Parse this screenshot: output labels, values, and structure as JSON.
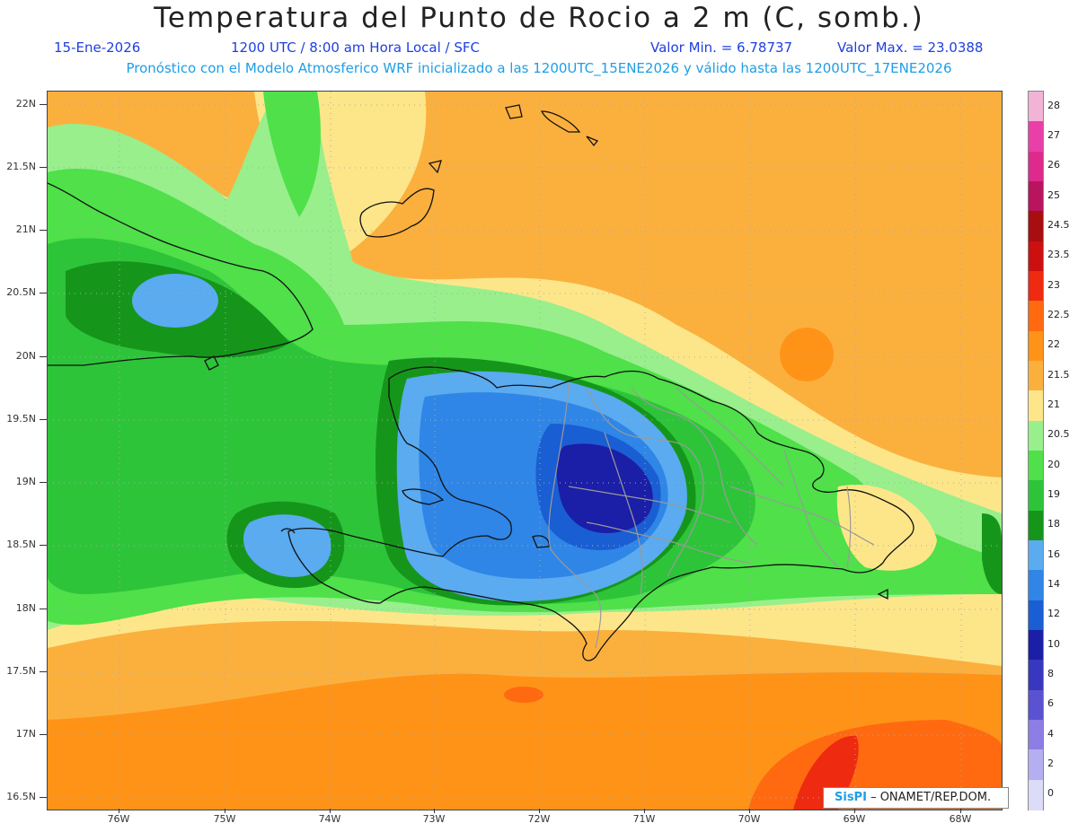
{
  "header": {
    "title": "Temperatura del Punto de Rocio a 2 m (C, somb.)",
    "date": "15-Ene-2026",
    "time": "1200 UTC / 8:00 am Hora Local / SFC",
    "vmin": "Valor Min. = 6.78737",
    "vmax": "Valor Max. = 23.0388",
    "subtitle": "Pronóstico con el Modelo Atmosferico WRF inicializado a las 1200UTC_15ENE2026 y válido hasta las  1200UTC_17ENE2026"
  },
  "axes": {
    "lat_labels": [
      "22N",
      "21.5N",
      "21N",
      "20.5N",
      "20N",
      "19.5N",
      "19N",
      "18.5N",
      "18N",
      "17.5N",
      "17N",
      "16.5N"
    ],
    "lon_labels": [
      "76W",
      "75W",
      "74W",
      "73W",
      "72W",
      "71W",
      "70W",
      "69W",
      "68W"
    ]
  },
  "colorbar": {
    "labels": [
      "28",
      "27",
      "26",
      "25",
      "24.5",
      "23.5",
      "23",
      "22.5",
      "22",
      "21.5",
      "21",
      "20.5",
      "20",
      "19",
      "18",
      "16",
      "14",
      "12",
      "10",
      "8",
      "6",
      "4",
      "2",
      "0"
    ],
    "colors": [
      "#f2b3d6",
      "#ea3fa9",
      "#dd2a8c",
      "#b8155e",
      "#a80d10",
      "#cc1010",
      "#ee2a10",
      "#ff6a10",
      "#ff9318",
      "#fbb03e",
      "#fde68a",
      "#98ef8c",
      "#4fe04a",
      "#2ec43a",
      "#15961b",
      "#5aabf0",
      "#2f86e6",
      "#1a5ed3",
      "#1b1ea6",
      "#3838bf",
      "#5a52d0",
      "#8c7ee5",
      "#b5aef0",
      "#dcdcf8"
    ]
  },
  "credit": {
    "logo": "SisPI",
    "text": "– ONAMET/REP.DOM."
  }
}
